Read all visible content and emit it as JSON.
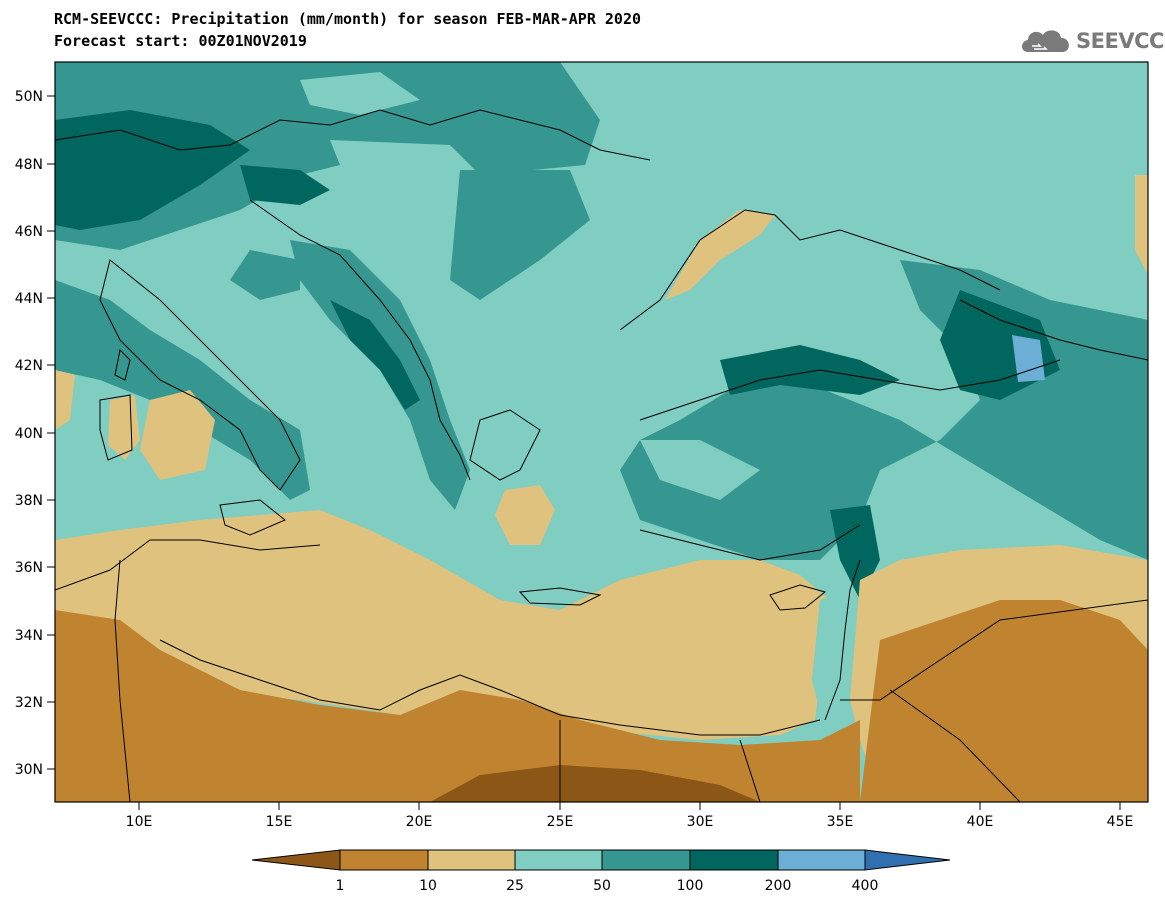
{
  "header": {
    "title_line1": "RCM-SEEVCCC: Precipitation (mm/month) for season FEB-MAR-APR 2020",
    "title_line2": "Forecast start: 00Z01NOV2019"
  },
  "logo": {
    "text": "SEEVCCC",
    "icon": "cloud-logo-icon",
    "color": "#7a7a7a"
  },
  "map": {
    "region": "Eastern Mediterranean / Balkans / Black Sea",
    "lon_range": [
      7,
      46
    ],
    "lat_range": [
      29,
      51
    ],
    "x_ticks": [
      "10E",
      "15E",
      "20E",
      "25E",
      "30E",
      "35E",
      "40E",
      "45E"
    ],
    "y_ticks": [
      "50N",
      "48N",
      "46N",
      "44N",
      "42N",
      "40N",
      "38N",
      "36N",
      "34N",
      "32N",
      "30N"
    ]
  },
  "colorbar": {
    "labels": [
      "1",
      "10",
      "25",
      "50",
      "100",
      "200",
      "400"
    ],
    "colors": [
      "#8b5616",
      "#c08431",
      "#dfc27d",
      "#80cdc1",
      "#35978f",
      "#01665e",
      "#6baed6",
      "#3070b0"
    ]
  }
}
